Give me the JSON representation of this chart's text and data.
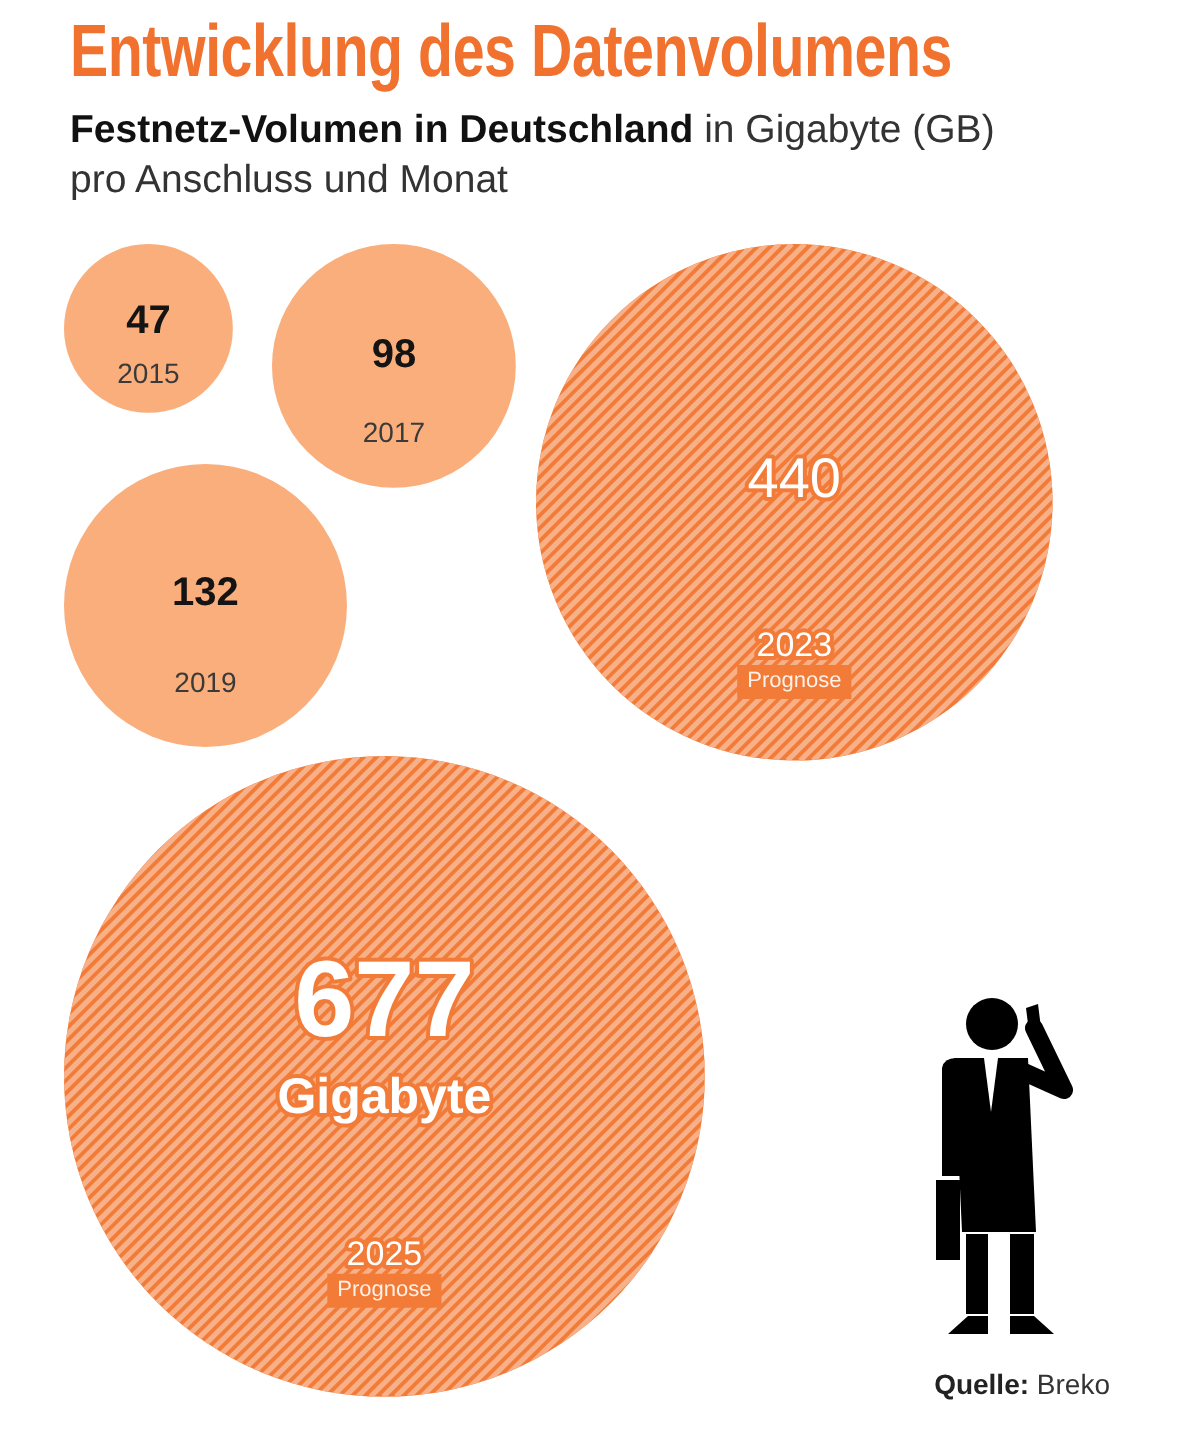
{
  "chart_data": {
    "type": "other",
    "title": "Entwicklung des Datenvolumens",
    "subtitle": "Festnetz-Volumen in Deutschland",
    "categories": [
      "2015",
      "2017",
      "2019",
      "2023 Prognose",
      "2025 Prognose"
    ],
    "series": [
      {
        "color": "#f9ae7c",
        "values": [
          47,
          98,
          132,
          null,
          null
        ],
        "value_labels": [
          "47",
          "98",
          "132",
          null,
          null
        ]
      },
      {
        "color": "#f27b38",
        "values": [
          null,
          null,
          null,
          440,
          677
        ],
        "value_labels": [
          null,
          null,
          null,
          "440",
          "677 Gigabyte"
        ]
      }
    ],
    "annotations": [
      "in Gigabyte (GB) pro Anschluss und Monat",
      "Quelle: Breko"
    ]
  }
}
